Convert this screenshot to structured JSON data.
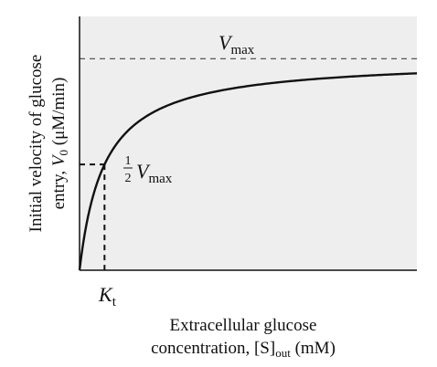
{
  "chart_data": {
    "type": "line",
    "title": "",
    "ylabel": {
      "line1": "Initial velocity of glucose",
      "line2_prefix": "entry, ",
      "line2_var": "V",
      "line2_sub": "0",
      "line2_suffix": " (μM/min)"
    },
    "xlabel": {
      "line1": "Extracellular glucose",
      "line2_prefix": "concentration, [S]",
      "line2_sub": "out",
      "line2_suffix": " (mM)"
    },
    "annotations": {
      "vmax": {
        "var": "V",
        "sub": "max"
      },
      "half_vmax": {
        "frac_num": "1",
        "frac_den": "2",
        "var": "V",
        "sub": "max"
      },
      "kt": {
        "var": "K",
        "sub": "t"
      }
    },
    "model": "michaelis-menten",
    "vmax": 1.0,
    "kt": 1.0,
    "xlim": [
      0,
      13.5
    ],
    "ylim": [
      0,
      1.2
    ],
    "curve": {
      "x": [
        0,
        0.25,
        0.5,
        0.75,
        1,
        1.5,
        2,
        3,
        4,
        5,
        6,
        8,
        10,
        12,
        13.5
      ],
      "y": [
        0,
        0.2,
        0.333,
        0.429,
        0.5,
        0.6,
        0.667,
        0.75,
        0.8,
        0.833,
        0.857,
        0.889,
        0.909,
        0.923,
        0.931
      ]
    },
    "grid": false,
    "legend": "none",
    "colors": {
      "plot_background": "#eeeeee",
      "line": "#111111",
      "axis": "#111111"
    }
  }
}
